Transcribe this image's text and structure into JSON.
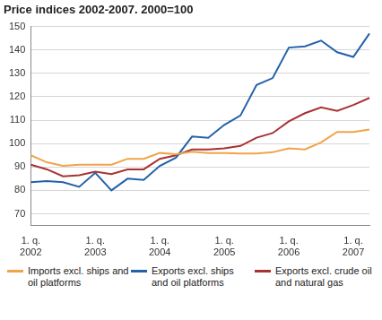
{
  "chart_data": {
    "type": "line",
    "title": "Price indices 2002-2007. 2000=100",
    "categories": [
      "1. q. 2002",
      null,
      null,
      null,
      "1. q. 2003",
      null,
      null,
      null,
      "1. q. 2004",
      null,
      null,
      null,
      "1. q. 2005",
      null,
      null,
      null,
      "1. q. 2006",
      null,
      null,
      null,
      "1. q. 2007",
      null
    ],
    "series": [
      {
        "name": "Imports excl. ships and oil platforms",
        "color": "#f0a44a",
        "values": [
          95,
          92,
          90.5,
          91,
          91,
          91,
          93.5,
          93.5,
          96,
          95.5,
          96.5,
          96,
          96,
          95.8,
          95.8,
          96.3,
          98,
          97.5,
          100.5,
          105,
          105,
          106
        ]
      },
      {
        "name": "Exports excl. ships and oil platforms",
        "color": "#2462a8",
        "values": [
          83.5,
          84,
          83.5,
          81.5,
          87.5,
          80,
          85,
          84.5,
          90.5,
          94,
          103,
          102.5,
          108,
          112,
          125,
          128,
          141,
          141.5,
          144,
          139,
          137,
          147
        ]
      },
      {
        "name": "Exports excl. crude oil and natural gas",
        "color": "#a83232",
        "values": [
          91,
          89,
          86,
          86.5,
          88,
          87,
          89,
          89,
          93.5,
          95,
          97.5,
          97.5,
          98,
          99,
          102.5,
          104.5,
          109.5,
          113,
          115.5,
          114,
          116.5,
          119.5
        ]
      }
    ],
    "ylim": [
      65,
      150
    ],
    "yticks": [
      70,
      80,
      90,
      100,
      110,
      120,
      130,
      140,
      150
    ],
    "grid": true,
    "legend": "bottom"
  }
}
